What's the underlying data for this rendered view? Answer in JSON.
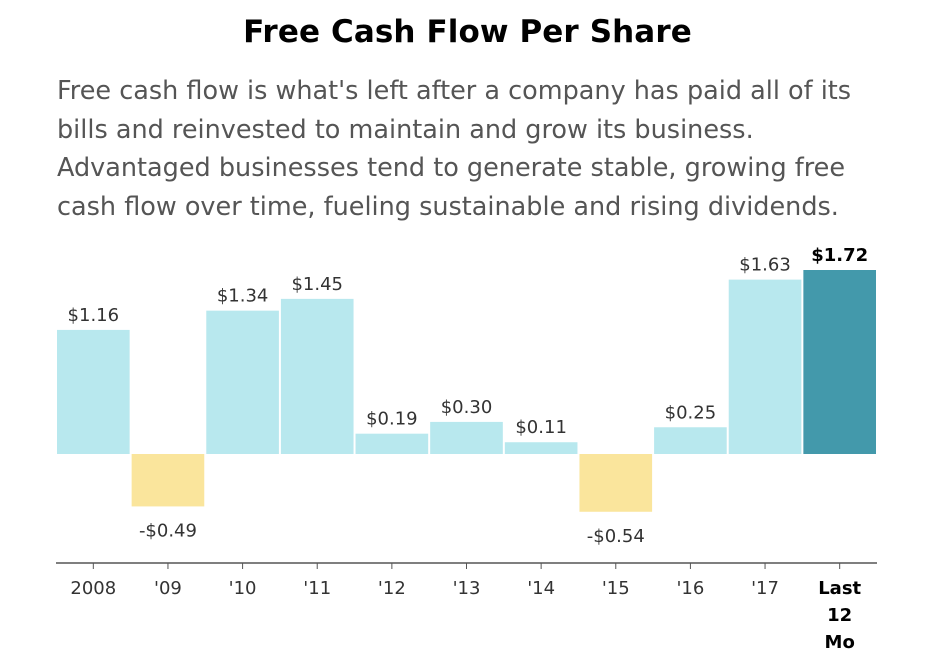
{
  "header": {
    "title": "Free Cash Flow Per Share",
    "description": "Free cash flow is what's left after a company has paid all of its bills and reinvested to maintain and grow its business. Advantaged businesses tend to generate stable, growing free cash flow over time, fueling sustainable and rising dividends."
  },
  "colors": {
    "positive": "#b8e8ee",
    "negative": "#fae59c",
    "highlight": "#4399ab",
    "axis": "#555555"
  },
  "chart_data": {
    "type": "bar",
    "categories": [
      "2008",
      "'09",
      "'10",
      "'11",
      "'12",
      "'13",
      "'14",
      "'15",
      "'16",
      "'17",
      "Last 12 Mo"
    ],
    "category_lines": [
      [
        "2008"
      ],
      [
        "'09"
      ],
      [
        "'10"
      ],
      [
        "'11"
      ],
      [
        "'12"
      ],
      [
        "'13"
      ],
      [
        "'14"
      ],
      [
        "'15"
      ],
      [
        "'16"
      ],
      [
        "'17"
      ],
      [
        "Last",
        "12",
        "Mo"
      ]
    ],
    "values": [
      1.16,
      -0.49,
      1.34,
      1.45,
      0.19,
      0.3,
      0.11,
      -0.54,
      0.25,
      1.63,
      1.72
    ],
    "value_labels": [
      "$1.16",
      "-$0.49",
      "$1.34",
      "$1.45",
      "$0.19",
      "$0.30",
      "$0.11",
      "-$0.54",
      "$0.25",
      "$1.63",
      "$1.72"
    ],
    "highlight_index": 10,
    "title": "Free Cash Flow Per Share",
    "xlabel": "",
    "ylabel": "",
    "ylim": [
      -1.0,
      1.72
    ],
    "grid": false,
    "legend": "none"
  }
}
